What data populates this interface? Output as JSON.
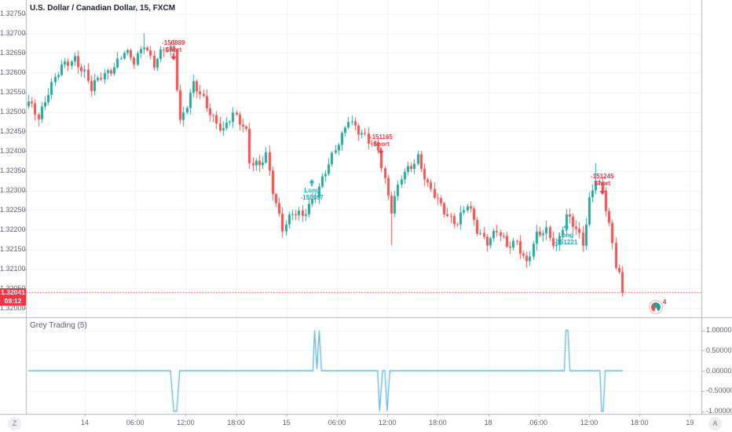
{
  "header": {
    "title": "U.S. Dollar / Canadian Dollar, 15, FXCM"
  },
  "colors": {
    "up": "#26a69a",
    "down": "#ef5350",
    "indicator_line": "#62b8da",
    "price_line": "#f23645",
    "grid": "#f0f3fa",
    "axis_border": "#b2b5be",
    "axis_text": "#5d6470",
    "long": "#22aec2",
    "short": "#f23645"
  },
  "price_pane": {
    "tick_labels": [
      "1.32750",
      "1.32700",
      "1.32650",
      "1.32600",
      "1.32550",
      "1.32500",
      "1.32450",
      "1.32400",
      "1.32350",
      "1.32300",
      "1.32250",
      "1.32200",
      "1.32150",
      "1.32100",
      "1.32050",
      "1.32000"
    ],
    "last_price": "1.32041",
    "countdown": "08:12",
    "notification_count": "4"
  },
  "indicator_pane": {
    "label": "Grey Trading (5)",
    "tick_labels": [
      "1.00000",
      "0.50000",
      "0.00000",
      "-0.50000",
      "-1.00000"
    ],
    "tick_values": [
      1,
      0.5,
      0,
      -0.5,
      -1
    ]
  },
  "time_axis": {
    "tick_labels": [
      "14",
      "06:00",
      "12:00",
      "18:00",
      "15",
      "06:00",
      "12:00",
      "18:00",
      "18",
      "06:00",
      "12:00",
      "18:00",
      "19"
    ],
    "left_button": "Z",
    "right_button": "A"
  },
  "chart_data": {
    "type": "candlestick",
    "title": "U.S. Dollar / Canadian Dollar, 15, FXCM",
    "price_range_visible": [
      1.32,
      1.3275
    ],
    "last_price_value": 1.32041,
    "candle_count": 181,
    "close_waypoints": [
      [
        0,
        1.3252
      ],
      [
        3,
        1.3249
      ],
      [
        6,
        1.32555
      ],
      [
        10,
        1.3261
      ],
      [
        14,
        1.3264
      ],
      [
        17,
        1.326
      ],
      [
        19,
        1.32555
      ],
      [
        22,
        1.3259
      ],
      [
        26,
        1.3262
      ],
      [
        29,
        1.3265
      ],
      [
        32,
        1.32625
      ],
      [
        35,
        1.3268
      ],
      [
        38,
        1.3262
      ],
      [
        41,
        1.32655
      ],
      [
        44,
        1.3266
      ],
      [
        45,
        1.3257
      ],
      [
        46,
        1.3248
      ],
      [
        48,
        1.3252
      ],
      [
        50,
        1.32565
      ],
      [
        53,
        1.3253
      ],
      [
        56,
        1.3249
      ],
      [
        59,
        1.3245
      ],
      [
        62,
        1.3249
      ],
      [
        65,
        1.3247
      ],
      [
        66,
        1.32455
      ],
      [
        67,
        1.3238
      ],
      [
        70,
        1.3236
      ],
      [
        72,
        1.32385
      ],
      [
        74,
        1.323
      ],
      [
        77,
        1.3221
      ],
      [
        80,
        1.3224
      ],
      [
        83,
        1.3223
      ],
      [
        86,
        1.3228
      ],
      [
        89,
        1.3233
      ],
      [
        92,
        1.3238
      ],
      [
        95,
        1.3244
      ],
      [
        97,
        1.3249
      ],
      [
        100,
        1.3245
      ],
      [
        103,
        1.3242
      ],
      [
        106,
        1.3241
      ],
      [
        108,
        1.3233
      ],
      [
        110,
        1.3225
      ],
      [
        113,
        1.3233
      ],
      [
        116,
        1.32365
      ],
      [
        118,
        1.3239
      ],
      [
        121,
        1.3231
      ],
      [
        124,
        1.3227
      ],
      [
        127,
        1.3224
      ],
      [
        130,
        1.3222
      ],
      [
        133,
        1.3226
      ],
      [
        136,
        1.322
      ],
      [
        139,
        1.32175
      ],
      [
        142,
        1.32195
      ],
      [
        145,
        1.32155
      ],
      [
        148,
        1.32175
      ],
      [
        151,
        1.32115
      ],
      [
        154,
        1.3218
      ],
      [
        157,
        1.322
      ],
      [
        160,
        1.3216
      ],
      [
        163,
        1.3223
      ],
      [
        166,
        1.322
      ],
      [
        168,
        1.3217
      ],
      [
        170,
        1.3228
      ],
      [
        172,
        1.3233
      ],
      [
        174,
        1.3229
      ],
      [
        176,
        1.3221
      ],
      [
        177,
        1.3216
      ],
      [
        178,
        1.32115
      ],
      [
        179,
        1.321
      ],
      [
        180,
        1.32041
      ]
    ],
    "wick_overrides": [
      [
        35,
        "hi",
        1.327
      ],
      [
        77,
        "lo",
        1.3218
      ],
      [
        110,
        "lo",
        1.3216
      ],
      [
        172,
        "hi",
        1.3237
      ],
      [
        180,
        "lo",
        1.3203
      ]
    ],
    "markers": [
      {
        "side": "short",
        "index": 44,
        "price": 1.3263,
        "label_lines": [
          "-150889",
          "Short"
        ]
      },
      {
        "side": "long",
        "index": 86,
        "price": 1.3233,
        "label_lines": [
          "Long",
          "-150997"
        ]
      },
      {
        "side": "short",
        "index": 107,
        "price": 1.3239,
        "label_lines": [
          "-151165",
          "Short"
        ]
      },
      {
        "side": "long",
        "index": 163,
        "price": 1.32215,
        "label_lines": [
          "Long",
          "-151221"
        ]
      },
      {
        "side": "short",
        "index": 174,
        "price": 1.3229,
        "label_lines": [
          "-151245",
          "Short"
        ]
      }
    ],
    "indicator": {
      "name": "Grey Trading (5)",
      "type": "line",
      "value_range": [
        -1,
        1
      ],
      "points": [
        [
          0,
          0
        ],
        [
          43.1,
          0
        ],
        [
          44.1,
          -1
        ],
        [
          45.0,
          -1
        ],
        [
          45.9,
          0
        ],
        [
          86.3,
          0
        ],
        [
          86.8,
          1
        ],
        [
          87.5,
          0.04
        ],
        [
          88.2,
          1
        ],
        [
          88.9,
          0
        ],
        [
          105.9,
          0
        ],
        [
          106.5,
          -1
        ],
        [
          107.4,
          0
        ],
        [
          108.1,
          0
        ],
        [
          108.8,
          -1
        ],
        [
          109.6,
          0
        ],
        [
          162.5,
          0
        ],
        [
          163.0,
          1
        ],
        [
          163.6,
          1
        ],
        [
          164.2,
          0
        ],
        [
          173.3,
          0
        ],
        [
          173.8,
          -1
        ],
        [
          174.3,
          -1
        ],
        [
          174.9,
          0
        ],
        [
          180.2,
          0
        ]
      ]
    }
  }
}
